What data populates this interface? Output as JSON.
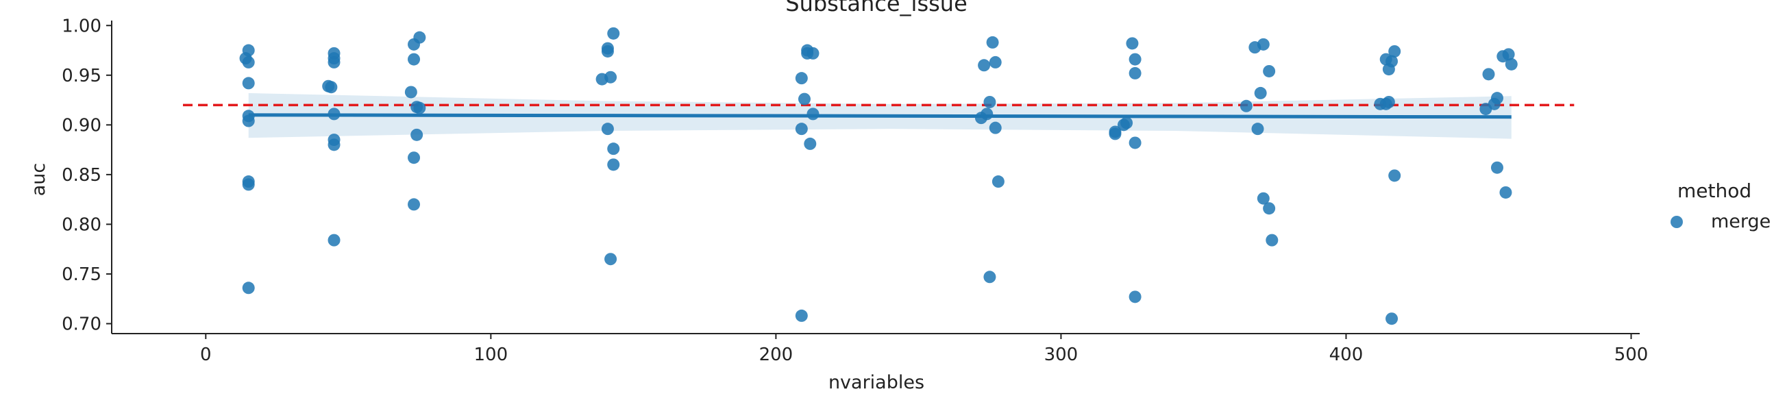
{
  "chart_data": {
    "type": "scatter",
    "title": "Substance_issue",
    "xlabel": "nvariables",
    "ylabel": "auc",
    "xlim": [
      -33,
      503
    ],
    "ylim": [
      0.69,
      1.005
    ],
    "xticks": [
      0,
      100,
      200,
      300,
      400,
      500
    ],
    "yticks": [
      0.7,
      0.75,
      0.8,
      0.85,
      0.9,
      0.95,
      1.0
    ],
    "grid": false,
    "reference_line": {
      "y": 0.92,
      "x_range": [
        -8,
        480
      ],
      "color": "#e31a1c",
      "style": "dashed"
    },
    "legend": {
      "title": "method",
      "placement": "right",
      "entries": [
        {
          "label": "merge",
          "color": "#1f77b4"
        }
      ]
    },
    "series": [
      {
        "name": "merge",
        "color": "#1f77b4",
        "points": [
          [
            14,
            0.967
          ],
          [
            15,
            0.975
          ],
          [
            15,
            0.963
          ],
          [
            15,
            0.942
          ],
          [
            15,
            0.909
          ],
          [
            15,
            0.904
          ],
          [
            15,
            0.843
          ],
          [
            15,
            0.84
          ],
          [
            15,
            0.736
          ],
          [
            43,
            0.939
          ],
          [
            44,
            0.938
          ],
          [
            45,
            0.972
          ],
          [
            45,
            0.967
          ],
          [
            45,
            0.963
          ],
          [
            45,
            0.911
          ],
          [
            45,
            0.885
          ],
          [
            45,
            0.88
          ],
          [
            45,
            0.784
          ],
          [
            72,
            0.933
          ],
          [
            73,
            0.981
          ],
          [
            73,
            0.966
          ],
          [
            73,
            0.867
          ],
          [
            73,
            0.82
          ],
          [
            74,
            0.918
          ],
          [
            74,
            0.89
          ],
          [
            75,
            0.988
          ],
          [
            75,
            0.917
          ],
          [
            139,
            0.946
          ],
          [
            141,
            0.977
          ],
          [
            141,
            0.974
          ],
          [
            141,
            0.896
          ],
          [
            142,
            0.948
          ],
          [
            142,
            0.765
          ],
          [
            143,
            0.992
          ],
          [
            143,
            0.876
          ],
          [
            143,
            0.86
          ],
          [
            209,
            0.947
          ],
          [
            209,
            0.896
          ],
          [
            209,
            0.708
          ],
          [
            210,
            0.926
          ],
          [
            211,
            0.975
          ],
          [
            211,
            0.972
          ],
          [
            212,
            0.881
          ],
          [
            213,
            0.972
          ],
          [
            213,
            0.911
          ],
          [
            272,
            0.907
          ],
          [
            273,
            0.96
          ],
          [
            274,
            0.911
          ],
          [
            275,
            0.923
          ],
          [
            275,
            0.747
          ],
          [
            276,
            0.983
          ],
          [
            277,
            0.963
          ],
          [
            277,
            0.897
          ],
          [
            278,
            0.843
          ],
          [
            319,
            0.891
          ],
          [
            319,
            0.893
          ],
          [
            322,
            0.9
          ],
          [
            323,
            0.902
          ],
          [
            325,
            0.982
          ],
          [
            326,
            0.966
          ],
          [
            326,
            0.952
          ],
          [
            326,
            0.882
          ],
          [
            326,
            0.727
          ],
          [
            365,
            0.919
          ],
          [
            368,
            0.978
          ],
          [
            369,
            0.896
          ],
          [
            370,
            0.932
          ],
          [
            371,
            0.981
          ],
          [
            371,
            0.826
          ],
          [
            373,
            0.954
          ],
          [
            373,
            0.816
          ],
          [
            374,
            0.784
          ],
          [
            412,
            0.921
          ],
          [
            414,
            0.966
          ],
          [
            414,
            0.921
          ],
          [
            415,
            0.956
          ],
          [
            415,
            0.923
          ],
          [
            416,
            0.964
          ],
          [
            416,
            0.705
          ],
          [
            417,
            0.974
          ],
          [
            417,
            0.849
          ],
          [
            449,
            0.916
          ],
          [
            450,
            0.951
          ],
          [
            452,
            0.921
          ],
          [
            453,
            0.927
          ],
          [
            453,
            0.857
          ],
          [
            455,
            0.969
          ],
          [
            456,
            0.832
          ],
          [
            457,
            0.971
          ],
          [
            458,
            0.961
          ]
        ]
      }
    ],
    "regression": {
      "color": "#1f77b4",
      "line": [
        [
          15,
          0.91
        ],
        [
          458,
          0.908
        ]
      ],
      "band_upper": [
        [
          15,
          0.932
        ],
        [
          140,
          0.924
        ],
        [
          240,
          0.921
        ],
        [
          340,
          0.922
        ],
        [
          458,
          0.929
        ]
      ],
      "band_lower": [
        [
          15,
          0.887
        ],
        [
          140,
          0.894
        ],
        [
          240,
          0.896
        ],
        [
          340,
          0.894
        ],
        [
          458,
          0.886
        ]
      ]
    }
  }
}
